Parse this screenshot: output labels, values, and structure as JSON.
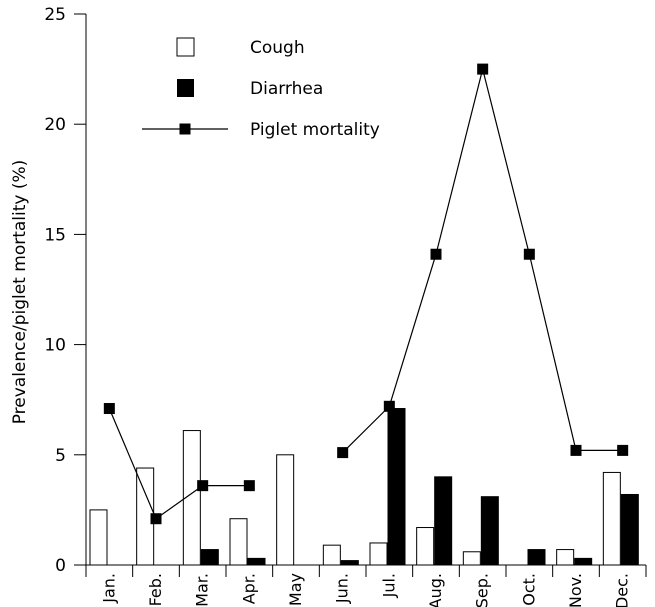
{
  "chart_data": {
    "type": "bar",
    "title": "",
    "xlabel": "",
    "ylabel": "Prevalence/piglet mortality (%)",
    "ylim": [
      0,
      25
    ],
    "yticks": [
      0,
      5,
      10,
      15,
      20,
      25
    ],
    "grid": false,
    "legend_position": "top-center",
    "categories": [
      "Jan.",
      "Feb.",
      "Mar.",
      "Apr.",
      "May",
      "Jun.",
      "Jul.",
      "Aug.",
      "Sep.",
      "Oct.",
      "Nov.",
      "Dec."
    ],
    "series": [
      {
        "name": "Cough",
        "type": "bar",
        "style": "open",
        "values": [
          2.5,
          4.4,
          6.1,
          2.1,
          5.0,
          0.9,
          1.0,
          1.7,
          0.6,
          0,
          0.7,
          4.2
        ]
      },
      {
        "name": "Diarrhea",
        "type": "bar",
        "style": "filled",
        "values": [
          0,
          0,
          0.7,
          0.3,
          0,
          0.2,
          7.1,
          4.0,
          3.1,
          0.7,
          0.3,
          3.2
        ]
      },
      {
        "name": "Piglet mortality",
        "type": "line",
        "marker": "square",
        "segments": [
          {
            "x": [
              "Jan.",
              "Feb.",
              "Mar.",
              "Apr."
            ],
            "values": [
              7.1,
              2.1,
              3.6,
              3.6
            ]
          },
          {
            "x": [
              "Jun.",
              "Jul.",
              "Aug.",
              "Sep.",
              "Oct.",
              "Nov.",
              "Dec."
            ],
            "values": [
              5.1,
              7.2,
              14.1,
              22.5,
              14.1,
              5.2,
              5.2
            ]
          }
        ]
      }
    ],
    "colors": {
      "open_fill": "#ffffff",
      "filled": "#000000",
      "line": "#000000"
    }
  }
}
